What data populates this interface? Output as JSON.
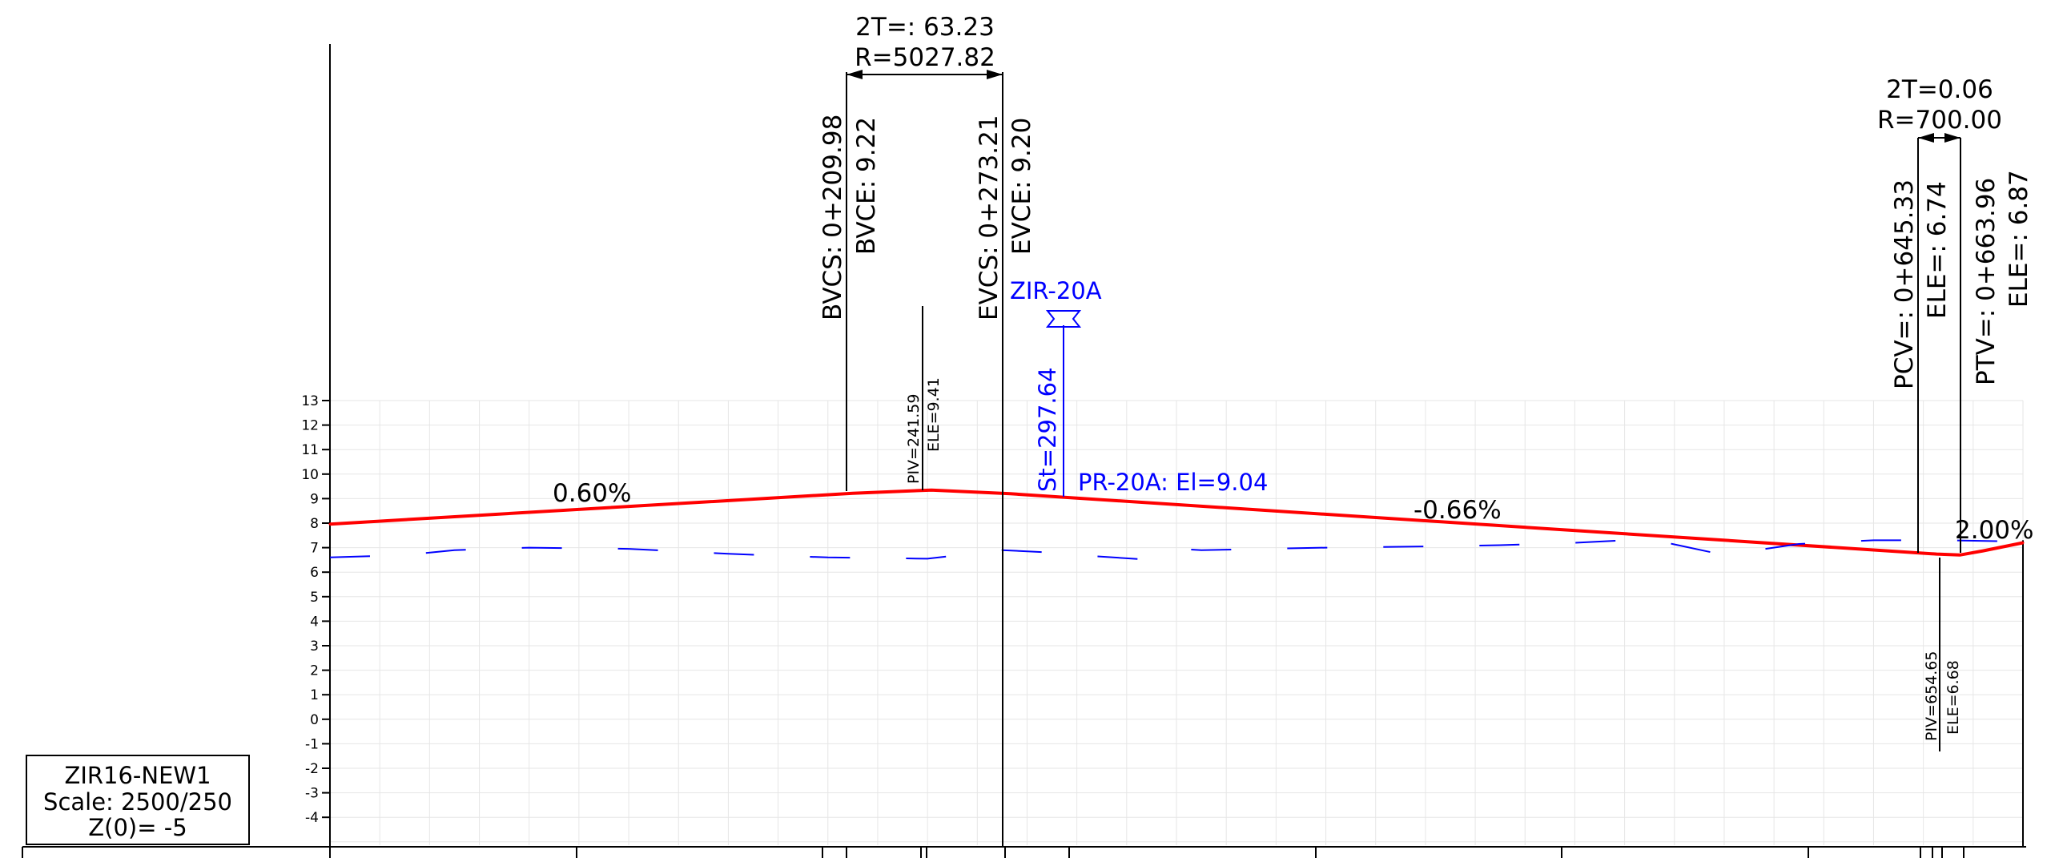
{
  "title_block": {
    "name": "ZIR16-NEW1",
    "scale": "Scale: 2500/250",
    "datum": "Z(0)= -5"
  },
  "elevation_axis": {
    "ticks": [
      "13",
      "12",
      "11",
      "10",
      "9",
      "8",
      "7",
      "6",
      "5",
      "4",
      "3",
      "2",
      "1",
      "0",
      "-1",
      "-2",
      "-3",
      "-4"
    ]
  },
  "grades": {
    "g1": "0.60%",
    "g2": "-0.66%",
    "g3": "2.00%"
  },
  "curve1": {
    "two_t": "2T=: 63.23",
    "radius": "R=5027.82",
    "bvcs": "BVCS: 0+209.98",
    "bvce": "BVCE: 9.22",
    "evcs": "EVCS: 0+273.21",
    "evce": "EVCE: 9.20",
    "piv": "PIV=241.59",
    "ele": "ELE=9.41"
  },
  "curve2": {
    "two_t": "2T=0.06",
    "radius": "R=700.00",
    "pcv": "PCV=: 0+645.33",
    "pcv_ele": "ELE=: 6.74",
    "ptv": "PTV=: 0+663.96",
    "ptv_ele": "ELE=: 6.87",
    "piv": "PIV=654.65",
    "ele": "ELE=6.68"
  },
  "marker": {
    "name": "ZIR-20A",
    "station": "St=297.64",
    "point": "PR-20A: El=9.04"
  },
  "colors": {
    "design_line": "#ff0000",
    "ground_line": "#0000ff",
    "annotation": "#0000ff",
    "grid": "#e6e6e6",
    "ink": "#000000"
  },
  "chart_data": {
    "type": "line",
    "xlabel": "",
    "ylabel": "",
    "x_range": [
      0,
      680
    ],
    "ylim": [
      -4,
      13
    ],
    "grid": true,
    "series": [
      {
        "values_xy": [
          [
            0,
            7.96
          ],
          [
            209.98,
            9.22
          ],
          [
            241.59,
            9.35
          ],
          [
            273.21,
            9.2
          ],
          [
            645.33,
            6.74
          ],
          [
            654.65,
            6.7
          ],
          [
            663.96,
            6.87
          ],
          [
            680,
            7.2
          ]
        ]
      },
      {
        "values_xy": [
          [
            0,
            6.6
          ],
          [
            30,
            6.7
          ],
          [
            50,
            6.9
          ],
          [
            80,
            7.0
          ],
          [
            120,
            6.95
          ],
          [
            160,
            6.75
          ],
          [
            200,
            6.6
          ],
          [
            240,
            6.55
          ],
          [
            270,
            6.9
          ],
          [
            290,
            6.8
          ],
          [
            300,
            6.7
          ],
          [
            330,
            6.5
          ],
          [
            340,
            6.95
          ],
          [
            350,
            6.9
          ],
          [
            400,
            7.0
          ],
          [
            440,
            7.05
          ],
          [
            470,
            7.1
          ],
          [
            500,
            7.2
          ],
          [
            530,
            7.35
          ],
          [
            560,
            6.7
          ],
          [
            590,
            7.15
          ],
          [
            620,
            7.3
          ],
          [
            650,
            7.3
          ],
          [
            680,
            7.25
          ]
        ],
        "dashed": true
      }
    ]
  }
}
